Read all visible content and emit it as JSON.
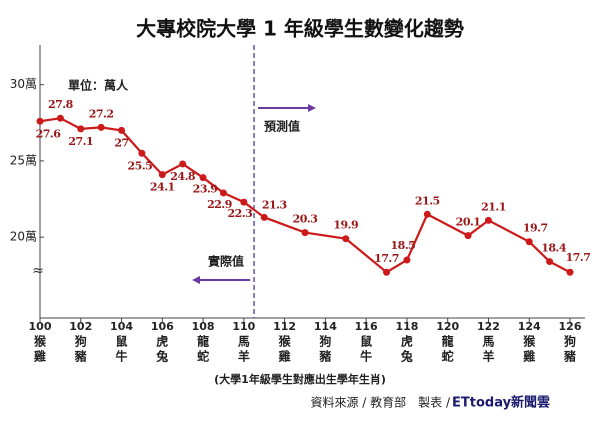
{
  "chart_data": {
    "type": "line",
    "title": "大專校院大學 1 年級學生數變化趨勢",
    "unit_note": "單位：萬人",
    "forecast_label": "預測值",
    "actual_label": "實際值",
    "footnote": "(大學1年級學生對應出生學年生肖)",
    "source": "資料來源 / 教育部　製表 / ",
    "brand": "ETtoday新聞雲",
    "axis_break": "≈",
    "x": [
      100,
      101,
      102,
      103,
      104,
      105,
      106,
      107,
      108,
      109,
      110,
      111,
      113,
      115,
      117,
      118,
      119,
      121,
      122,
      124,
      125,
      126
    ],
    "values": [
      27.6,
      27.8,
      27.1,
      27.2,
      27.0,
      25.5,
      24.1,
      24.8,
      23.9,
      22.9,
      22.3,
      21.3,
      20.3,
      19.9,
      17.7,
      18.5,
      21.5,
      20.1,
      21.1,
      19.7,
      18.4,
      17.7
    ],
    "color": "#cc1a1a",
    "xlim": [
      100,
      126
    ],
    "xticks": [
      100,
      102,
      104,
      106,
      108,
      110,
      112,
      114,
      116,
      118,
      120,
      122,
      124,
      126
    ],
    "xtick_zodiac": [
      [
        "猴",
        "雞"
      ],
      [
        "狗",
        "豬"
      ],
      [
        "鼠",
        "牛"
      ],
      [
        "虎",
        "兔"
      ],
      [
        "龍",
        "蛇"
      ],
      [
        "馬",
        "羊"
      ],
      [
        "猴",
        "雞"
      ],
      [
        "狗",
        "豬"
      ],
      [
        "鼠",
        "牛"
      ],
      [
        "虎",
        "兔"
      ],
      [
        "龍",
        "蛇"
      ],
      [
        "馬",
        "羊"
      ],
      [
        "猴",
        "雞"
      ],
      [
        "狗",
        "豬"
      ]
    ],
    "ylim": [
      14.7,
      32.6
    ],
    "yticks": [
      {
        "value": 20,
        "label": "20萬"
      },
      {
        "value": 25,
        "label": "25萬"
      },
      {
        "value": 30,
        "label": "30萬"
      }
    ]
  }
}
